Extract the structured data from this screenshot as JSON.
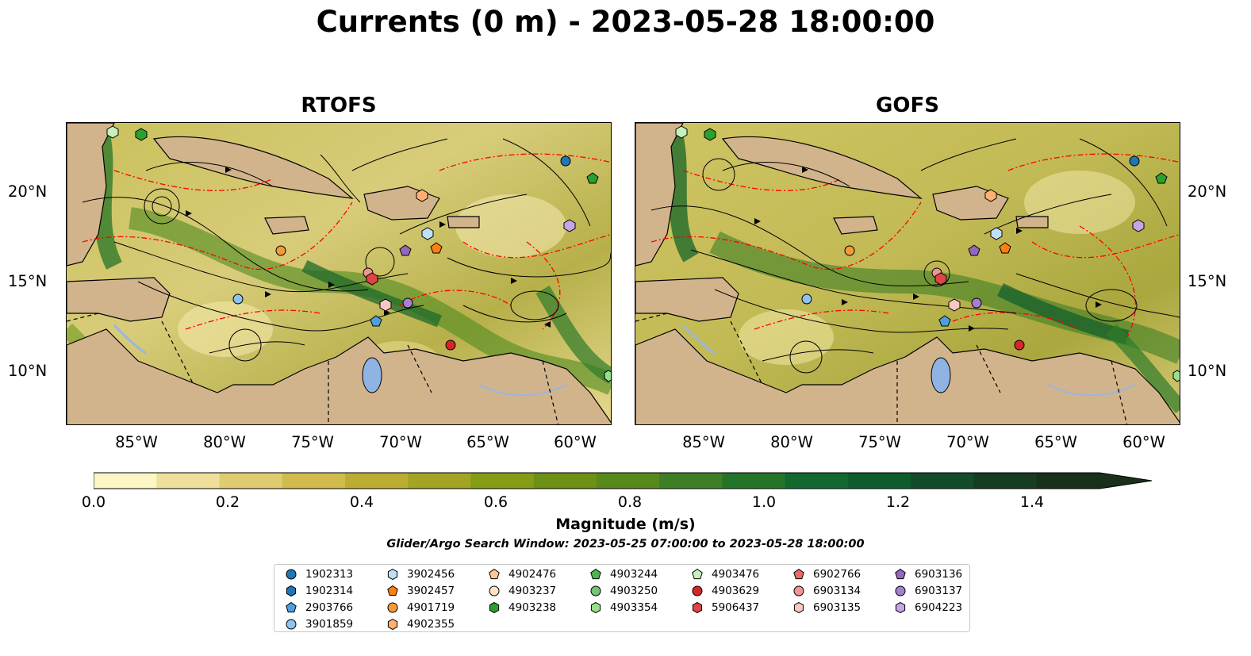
{
  "title": "Currents (0 m) - 2023-05-28 18:00:00",
  "panels": [
    {
      "title": "RTOFS"
    },
    {
      "title": "GOFS"
    }
  ],
  "lat_ticks": [
    "20°N",
    "15°N",
    "10°N"
  ],
  "lon_ticks": [
    "85°W",
    "80°W",
    "75°W",
    "70°W",
    "65°W",
    "60°W"
  ],
  "colorbar": {
    "label": "Magnitude (m/s)",
    "ticks": [
      "0.0",
      "0.2",
      "0.4",
      "0.6",
      "0.8",
      "1.0",
      "1.2",
      "1.4"
    ],
    "colors": [
      "#fcf6c4",
      "#efdf9b",
      "#e0cc70",
      "#d1bb4d",
      "#bbad33",
      "#a1a522",
      "#859c17",
      "#6c9114",
      "#57891d",
      "#3e7f25",
      "#247428",
      "#12682e",
      "#0e5b2c",
      "#124c28",
      "#163c22",
      "#19301b"
    ]
  },
  "search_window": "Glider/Argo Search Window: 2023-05-25 07:00:00 to 2023-05-28 18:00:00",
  "legend": [
    {
      "id": "1902313",
      "color": "#1f77b4",
      "marker": "circle"
    },
    {
      "id": "1902314",
      "color": "#1f77b4",
      "marker": "hexagon"
    },
    {
      "id": "2903766",
      "color": "#4f9fe0",
      "marker": "pentagon"
    },
    {
      "id": "3901859",
      "color": "#8fc3ef",
      "marker": "circle"
    },
    {
      "id": "3902456",
      "color": "#bfe0f7",
      "marker": "hexagon"
    },
    {
      "id": "3902457",
      "color": "#ff7f0e",
      "marker": "pentagon"
    },
    {
      "id": "4901719",
      "color": "#f59a3c",
      "marker": "circle"
    },
    {
      "id": "4902355",
      "color": "#ffb070",
      "marker": "hexagon"
    },
    {
      "id": "4902476",
      "color": "#ffc795",
      "marker": "pentagon"
    },
    {
      "id": "4903237",
      "color": "#ffe2c4",
      "marker": "circle"
    },
    {
      "id": "4903238",
      "color": "#2ca02c",
      "marker": "hexagon"
    },
    {
      "id": "4903244",
      "color": "#4eb54e",
      "marker": "pentagon"
    },
    {
      "id": "4903250",
      "color": "#74c476",
      "marker": "circle"
    },
    {
      "id": "4903354",
      "color": "#98df8a",
      "marker": "hexagon"
    },
    {
      "id": "4903476",
      "color": "#c7f0bd",
      "marker": "pentagon"
    },
    {
      "id": "4903629",
      "color": "#d62728",
      "marker": "circle"
    },
    {
      "id": "5906437",
      "color": "#e04446",
      "marker": "hexagon"
    },
    {
      "id": "6902766",
      "color": "#e8696a",
      "marker": "pentagon"
    },
    {
      "id": "6903134",
      "color": "#f09592",
      "marker": "circle"
    },
    {
      "id": "6903135",
      "color": "#f9c7c1",
      "marker": "hexagon"
    },
    {
      "id": "6903136",
      "color": "#9467bd",
      "marker": "pentagon"
    },
    {
      "id": "6903137",
      "color": "#a57fd0",
      "marker": "circle"
    },
    {
      "id": "6904223",
      "color": "#c3a6e6",
      "marker": "hexagon"
    }
  ],
  "map_colors": {
    "land": "#d2b48c",
    "lake": "#9ab6e0",
    "contour": "#ff0000",
    "stream": "#000000"
  }
}
